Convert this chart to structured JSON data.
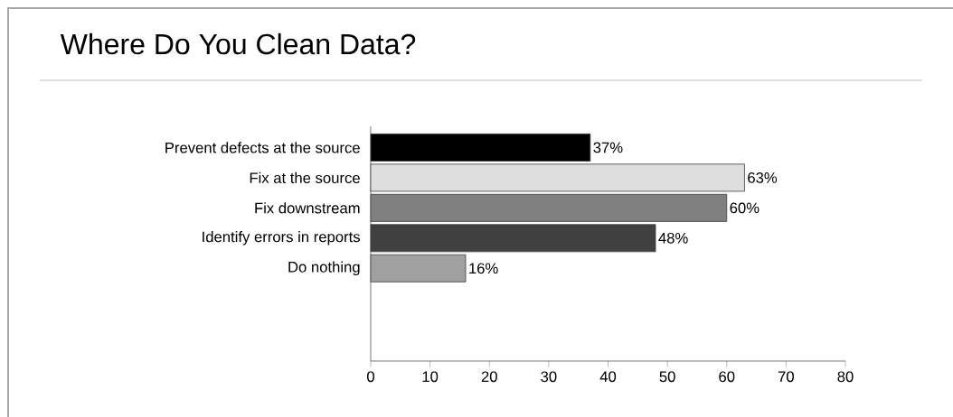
{
  "chart_data": {
    "type": "bar",
    "orientation": "horizontal",
    "title": "Where Do You Clean Data?",
    "categories": [
      "Prevent defects at the source",
      "Fix at the source",
      "Fix downstream",
      "Identify errors in reports",
      "Do nothing"
    ],
    "values": [
      37,
      63,
      60,
      48,
      16
    ],
    "colors": [
      "#000000",
      "#dedede",
      "#808080",
      "#404040",
      "#a0a0a0"
    ],
    "value_labels": [
      "37%",
      "63%",
      "60%",
      "48%",
      "16%"
    ],
    "xlim": [
      0,
      80
    ],
    "xticks": [
      0,
      10,
      20,
      30,
      40,
      50,
      60,
      70,
      80
    ]
  }
}
